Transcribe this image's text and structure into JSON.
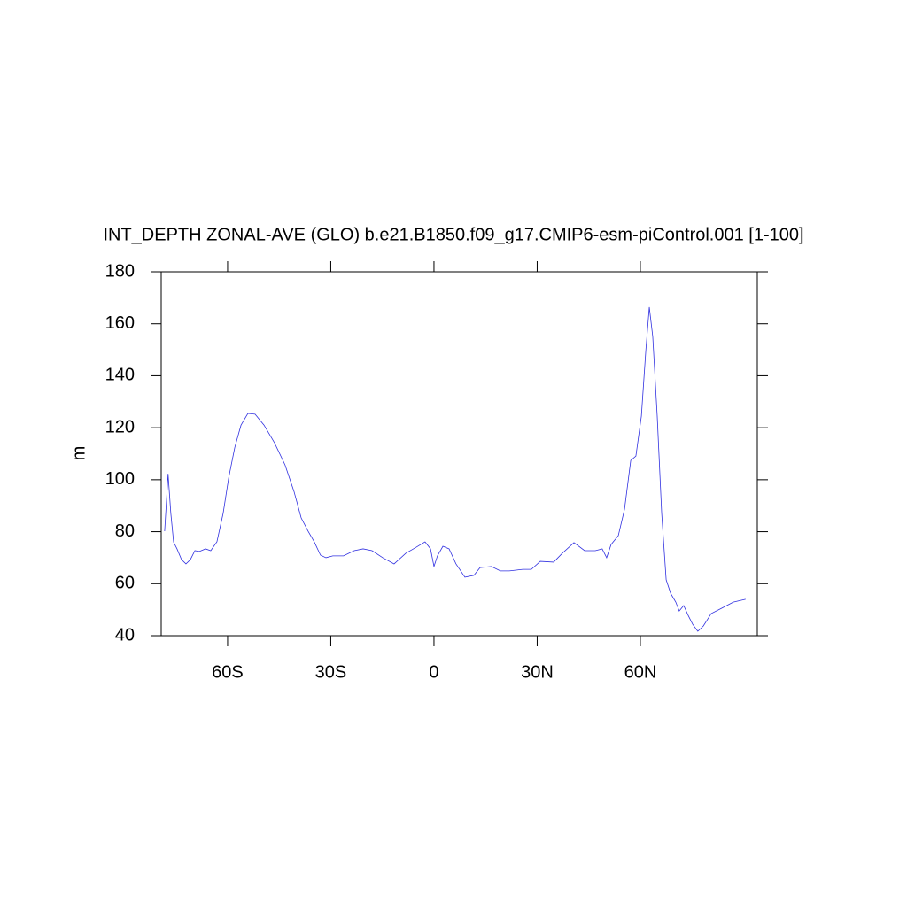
{
  "chart_data": {
    "type": "line",
    "title": "INT_DEPTH ZONAL-AVE (GLO) b.e21.B1850.f09_g17.CMIP6-esm-piControl.001 [1-100]",
    "y_label": "m",
    "x": [
      -78.3,
      -77.3,
      -76.5,
      -75.7,
      -74.7,
      -73.4,
      -72.1,
      -70.8,
      -69.5,
      -68.2,
      -66.4,
      -64.9,
      -63.1,
      -61.3,
      -59.7,
      -57.9,
      -56.1,
      -54.1,
      -52,
      -49.4,
      -46.4,
      -43.3,
      -40.7,
      -38.6,
      -36.6,
      -34.8,
      -33,
      -31.4,
      -29.4,
      -26.3,
      -23.2,
      -20.6,
      -18,
      -14.9,
      -11.6,
      -8.2,
      -5.2,
      -2.6,
      -1,
      0,
      1,
      2.6,
      4.4,
      6.4,
      9,
      11.6,
      13.4,
      16.7,
      19.3,
      21.9,
      25.8,
      28.3,
      30.9,
      34.8,
      37.3,
      40.7,
      43.8,
      46.9,
      48.9,
      50.2,
      51.5,
      53.6,
      55.4,
      57.2,
      58.7,
      60.3,
      61.6,
      62.6,
      63.6,
      64.9,
      66.2,
      67.5,
      68.8,
      70.3,
      71.3,
      72.6,
      73.9,
      75.2,
      76.7,
      78.3,
      80.6,
      83.7,
      87,
      90.6
    ],
    "series": [
      {
        "name": "INT_DEPTH",
        "color": "#3030e0",
        "values": [
          80.2,
          102.3,
          87,
          76,
          73.4,
          69.3,
          67.6,
          69.3,
          72.7,
          72.4,
          73.4,
          72.7,
          76.1,
          87,
          100.6,
          112.5,
          121,
          125.5,
          125.2,
          121,
          114.3,
          105.7,
          95.5,
          85.3,
          80.2,
          76.1,
          71,
          70,
          70.7,
          70.7,
          72.7,
          73.4,
          72.7,
          70,
          67.6,
          71.7,
          74,
          76.1,
          73.4,
          66.6,
          70.7,
          74.4,
          73.4,
          67.6,
          62.5,
          63.2,
          66.2,
          66.6,
          64.9,
          64.9,
          65.5,
          65.5,
          68.6,
          68.3,
          71.7,
          75.8,
          72.7,
          72.7,
          73.4,
          70,
          75.1,
          78.5,
          88.7,
          107.4,
          109.1,
          124.5,
          150,
          166.4,
          155.1,
          124.5,
          87,
          61.5,
          56.3,
          52.9,
          49.5,
          51.6,
          47.8,
          44.4,
          41.7,
          43.7,
          48.5,
          50.6,
          52.9,
          54
        ]
      }
    ],
    "xlim": [
      -79.3,
      94.0
    ],
    "xticks": [
      {
        "value": -60,
        "label": "60S"
      },
      {
        "value": -30,
        "label": "30S"
      },
      0,
      {
        "value": 30,
        "label": "30N"
      },
      {
        "value": 60,
        "label": "60N"
      }
    ],
    "ylim": [
      40,
      180
    ],
    "yticks": [
      40,
      60,
      80,
      100,
      120,
      140,
      160,
      180
    ],
    "grid": false
  }
}
